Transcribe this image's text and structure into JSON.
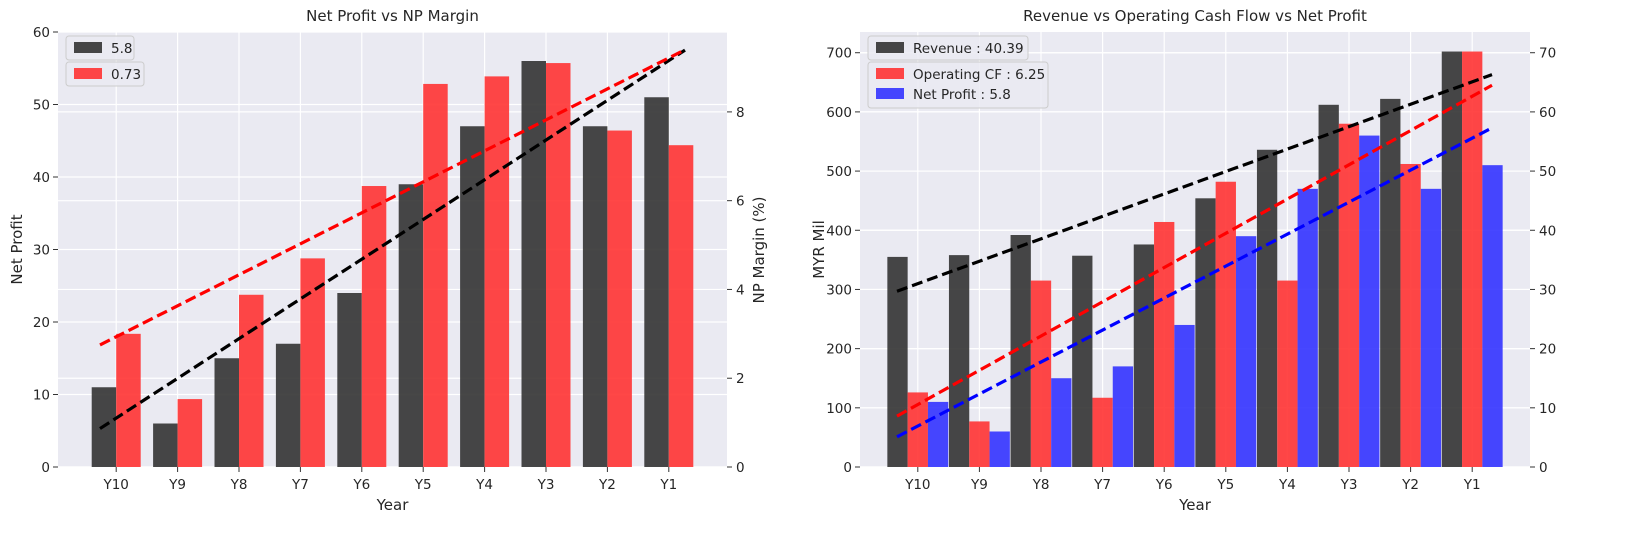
{
  "colors": {
    "background": "#eaeaf2",
    "grid": "#ffffff",
    "black_bar": "#333333",
    "red_bar": "#ff3333",
    "blue_bar": "#3333ff",
    "black_line": "#000000",
    "red_line": "#ff0000",
    "blue_line": "#0000ff"
  },
  "chart_data": [
    {
      "type": "bar",
      "title": "Net Profit vs NP Margin",
      "xlabel": "Year",
      "ylabel": "Net Profit",
      "ylabel_right": "NP Margin (%)",
      "categories": [
        "Y10",
        "Y9",
        "Y8",
        "Y7",
        "Y6",
        "Y5",
        "Y4",
        "Y3",
        "Y2",
        "Y1"
      ],
      "ylim": [
        0,
        60
      ],
      "yticks": [
        0,
        10,
        20,
        30,
        40,
        50,
        60
      ],
      "ylim_right": [
        0,
        9.8
      ],
      "yticks_right": [
        0,
        2,
        4,
        6,
        8
      ],
      "grid": true,
      "legend_position": "top-left",
      "series": [
        {
          "name": "5.8",
          "axis": "left",
          "color": "#333333",
          "values": [
            11,
            6,
            15,
            17,
            24,
            39,
            47,
            56,
            47,
            51
          ]
        },
        {
          "name": "0.73",
          "axis": "right",
          "color": "#ff3333",
          "values": [
            3.0,
            1.53,
            3.88,
            4.7,
            6.33,
            8.63,
            8.8,
            9.1,
            7.58,
            7.25
          ]
        }
      ],
      "trendlines": [
        {
          "axis": "left",
          "color": "#000000",
          "start": 5.3,
          "end": 57.5
        },
        {
          "axis": "right",
          "color": "#ff0000",
          "start": 2.75,
          "end": 9.4
        }
      ]
    },
    {
      "type": "bar",
      "title": "Revenue vs Operating Cash Flow vs Net Profit",
      "xlabel": "Year",
      "ylabel": "MYR Mil",
      "categories": [
        "Y10",
        "Y9",
        "Y8",
        "Y7",
        "Y6",
        "Y5",
        "Y4",
        "Y3",
        "Y2",
        "Y1"
      ],
      "ylim": [
        0,
        735
      ],
      "yticks": [
        0,
        100,
        200,
        300,
        400,
        500,
        600,
        700
      ],
      "ylim_right": [
        0,
        73.5
      ],
      "yticks_right": [
        0,
        10,
        20,
        30,
        40,
        50,
        60,
        70
      ],
      "grid": true,
      "legend_position": "top-left",
      "series": [
        {
          "name": "Revenue : 40.39",
          "axis": "left",
          "color": "#333333",
          "values": [
            355,
            358,
            392,
            357,
            376,
            454,
            536,
            612,
            622,
            702
          ]
        },
        {
          "name": "Operating CF : 6.25",
          "axis": "left",
          "color": "#ff3333",
          "values": [
            126,
            77,
            315,
            117,
            414,
            482,
            315,
            580,
            512,
            702
          ]
        },
        {
          "name": "Net Profit : 5.8",
          "axis": "right",
          "color": "#3333ff",
          "values": [
            11,
            6,
            15,
            17,
            24,
            39,
            47,
            56,
            47,
            51
          ]
        }
      ],
      "trendlines": [
        {
          "axis": "left",
          "color": "#000000",
          "start": 297,
          "end": 663
        },
        {
          "axis": "left",
          "color": "#ff0000",
          "start": 86,
          "end": 645
        },
        {
          "axis": "right",
          "color": "#0000ff",
          "start": 5.1,
          "end": 57.3
        }
      ]
    }
  ]
}
